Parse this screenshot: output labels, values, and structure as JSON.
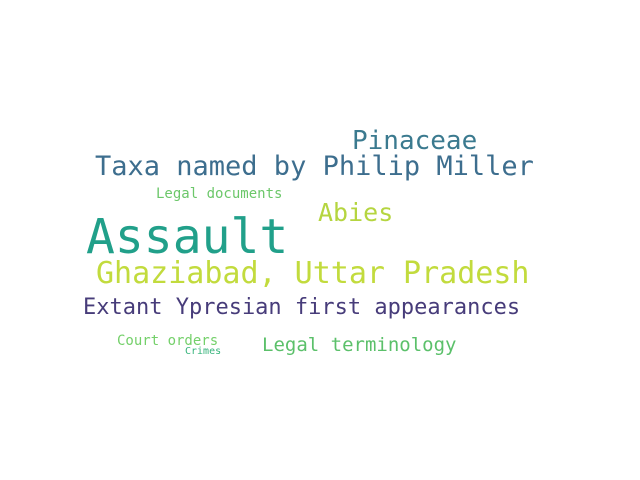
{
  "words": [
    {
      "id": "w-pinaceae",
      "text": "Pinaceae",
      "color": "#3b7a8f"
    },
    {
      "id": "w-taxa",
      "text": "Taxa named by Philip Miller",
      "color": "#3d6e8e"
    },
    {
      "id": "w-legaldocs",
      "text": "Legal documents",
      "color": "#6cc76a"
    },
    {
      "id": "w-abies",
      "text": "Abies",
      "color": "#b5d540"
    },
    {
      "id": "w-assault",
      "text": "Assault",
      "color": "#21a08a"
    },
    {
      "id": "w-ghaziabad",
      "text": "Ghaziabad, Uttar Pradesh",
      "color": "#c2db3d"
    },
    {
      "id": "w-extant",
      "text": "Extant Ypresian first appearances",
      "color": "#473c7a"
    },
    {
      "id": "w-court",
      "text": "Court orders",
      "color": "#74d06a"
    },
    {
      "id": "w-legalterm",
      "text": "Legal terminology",
      "color": "#5bc06a"
    },
    {
      "id": "w-crimes",
      "text": "Crimes",
      "color": "#35b37a"
    }
  ]
}
